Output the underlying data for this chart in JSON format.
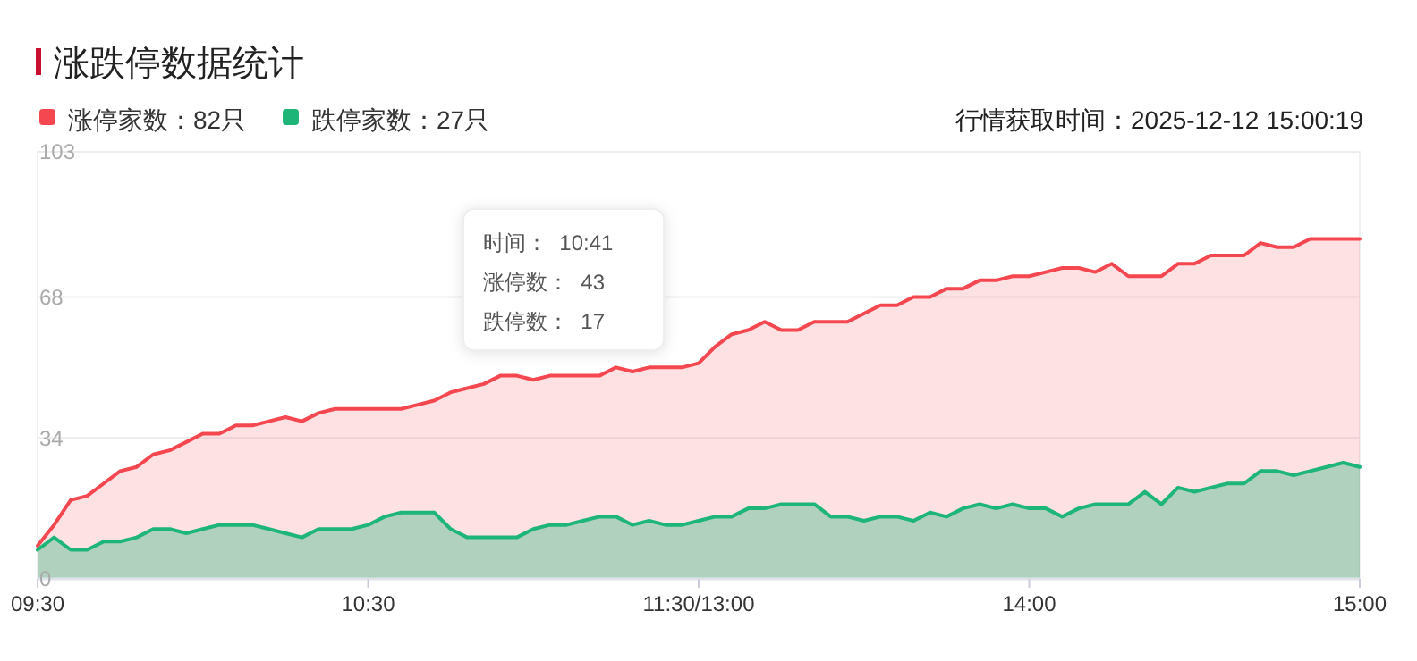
{
  "chart_data": {
    "type": "area",
    "title": "涨跌停数据统计",
    "subtitle": "行情获取时间：2025-12-12 15:00:19",
    "annotations": [
      "时间：  10:41",
      "涨停数：  43",
      "跌停数：  17"
    ],
    "categories": [
      "09:30",
      null,
      null,
      null,
      null,
      null,
      null,
      null,
      null,
      null,
      null,
      null,
      null,
      null,
      null,
      null,
      null,
      null,
      null,
      null,
      "10:30",
      null,
      null,
      null,
      null,
      null,
      null,
      null,
      null,
      null,
      null,
      null,
      null,
      null,
      null,
      null,
      null,
      null,
      null,
      null,
      "11:30/13:00",
      null,
      null,
      null,
      null,
      null,
      null,
      null,
      null,
      null,
      null,
      null,
      null,
      null,
      null,
      null,
      null,
      null,
      null,
      null,
      "14:00",
      null,
      null,
      null,
      null,
      null,
      null,
      null,
      null,
      null,
      null,
      null,
      null,
      null,
      null,
      null,
      null,
      null,
      null,
      null,
      "15:00"
    ],
    "ylim": [
      0,
      103
    ],
    "yticks": [
      0,
      34,
      68,
      103
    ],
    "grid": "y",
    "legend": "top left",
    "marker": "none",
    "line_style": "solid",
    "series": [
      {
        "name": "涨停家数：82只",
        "color": "#f5474f",
        "values": [
          8,
          13,
          19,
          20,
          23,
          26,
          27,
          30,
          31,
          33,
          35,
          35,
          37,
          37,
          38,
          39,
          38,
          40,
          41,
          41,
          41,
          41,
          41,
          42,
          43,
          45,
          46,
          47,
          49,
          49,
          48,
          49,
          49,
          49,
          49,
          51,
          50,
          51,
          51,
          51,
          52,
          56,
          59,
          60,
          62,
          60,
          60,
          62,
          62,
          62,
          64,
          66,
          66,
          68,
          68,
          70,
          70,
          72,
          72,
          73,
          73,
          74,
          75,
          75,
          74,
          76,
          73,
          73,
          73,
          76,
          76,
          78,
          78,
          78,
          81,
          80,
          80,
          82,
          82,
          82,
          82
        ]
      },
      {
        "name": "跌停家数：27只",
        "color": "#1db578",
        "values": [
          7,
          10,
          7,
          7,
          9,
          9,
          10,
          12,
          12,
          11,
          12,
          13,
          13,
          13,
          12,
          11,
          10,
          12,
          12,
          12,
          13,
          15,
          16,
          16,
          16,
          12,
          10,
          10,
          10,
          10,
          12,
          13,
          13,
          14,
          15,
          15,
          13,
          14,
          13,
          13,
          14,
          15,
          15,
          17,
          17,
          18,
          18,
          18,
          15,
          15,
          14,
          15,
          15,
          14,
          16,
          15,
          17,
          18,
          17,
          18,
          17,
          17,
          15,
          17,
          18,
          18,
          18,
          21,
          18,
          22,
          21,
          22,
          23,
          23,
          26,
          26,
          25,
          26,
          27,
          28,
          27
        ]
      }
    ]
  }
}
